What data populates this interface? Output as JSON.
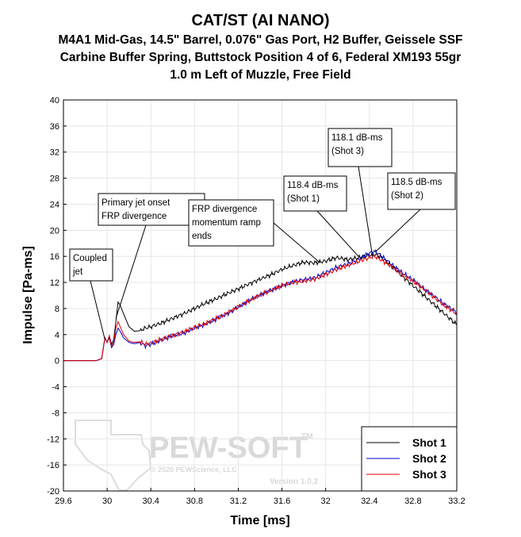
{
  "chart_data": {
    "type": "line",
    "title": "CAT/ST (AI NANO)",
    "subtitle_lines": [
      "M4A1 Mid-Gas, 14.5\" Barrel, 0.076\" Gas Port, H2 Buffer, Geissele SSF",
      "Carbine Buffer Spring, Buttstock Position 4 of 6, Federal XM193 55gr",
      "1.0 m Left of Muzzle, Free Field"
    ],
    "xlabel": "Time [ms]",
    "ylabel": "Impulse [Pa-ms]",
    "xlim": [
      29.6,
      33.2
    ],
    "ylim": [
      -20,
      40
    ],
    "x_ticks": [
      29.6,
      30,
      30.4,
      30.8,
      31.2,
      31.6,
      32,
      32.4,
      32.8,
      33.2
    ],
    "x_tick_labels": [
      "29.6",
      "30",
      "30.4",
      "30.8",
      "31.2",
      "31.6",
      "32",
      "32.4",
      "32.8",
      "33.2"
    ],
    "y_ticks": [
      -20,
      -16,
      -12,
      -8,
      -4,
      0,
      4,
      8,
      12,
      16,
      20,
      24,
      28,
      32,
      36,
      40
    ],
    "y_tick_labels": [
      "-20",
      "-16",
      "-12",
      "-8",
      "-4",
      "0",
      "4",
      "8",
      "12",
      "16",
      "20",
      "24",
      "28",
      "32",
      "36",
      "40"
    ],
    "grid": true,
    "legend_position": "bottom-right",
    "series": [
      {
        "name": "Shot 1",
        "color": "#000000",
        "x": [
          29.6,
          29.9,
          29.95,
          29.97,
          29.98,
          30.0,
          30.02,
          30.04,
          30.06,
          30.08,
          30.1,
          30.12,
          30.15,
          30.2,
          30.25,
          30.3,
          30.35,
          30.4,
          30.5,
          30.6,
          30.7,
          30.8,
          30.9,
          31.0,
          31.1,
          31.2,
          31.3,
          31.4,
          31.5,
          31.6,
          31.7,
          31.8,
          31.9,
          32.0,
          32.1,
          32.2,
          32.3,
          32.4,
          32.45,
          32.5,
          32.6,
          32.7,
          32.8,
          32.9,
          33.0,
          33.1,
          33.2
        ],
        "y": [
          0,
          0,
          0.3,
          2.5,
          3.5,
          2.8,
          3.8,
          2.5,
          3.2,
          6.0,
          9.0,
          8.5,
          7.2,
          5.2,
          4.5,
          4.6,
          5.0,
          5.2,
          5.8,
          6.5,
          7.2,
          8.0,
          8.8,
          9.5,
          10.3,
          11.0,
          11.8,
          12.5,
          13.2,
          14.0,
          14.6,
          15.1,
          15.0,
          15.3,
          15.8,
          15.5,
          15.8,
          16.2,
          16.3,
          16.0,
          14.6,
          13.0,
          11.5,
          10.0,
          8.5,
          7.0,
          5.5
        ]
      },
      {
        "name": "Shot 2",
        "color": "#0000cc",
        "x": [
          29.6,
          29.9,
          29.95,
          29.97,
          29.98,
          30.0,
          30.02,
          30.04,
          30.06,
          30.08,
          30.1,
          30.12,
          30.15,
          30.2,
          30.25,
          30.3,
          30.35,
          30.4,
          30.5,
          30.6,
          30.7,
          30.8,
          30.9,
          31.0,
          31.1,
          31.2,
          31.3,
          31.4,
          31.5,
          31.6,
          31.7,
          31.8,
          31.9,
          32.0,
          32.1,
          32.2,
          32.3,
          32.4,
          32.45,
          32.5,
          32.6,
          32.7,
          32.8,
          32.9,
          33.0,
          33.1,
          33.2
        ],
        "y": [
          0,
          0,
          0.3,
          2.5,
          3.5,
          2.8,
          3.5,
          2.0,
          2.5,
          4.0,
          5.0,
          4.5,
          3.5,
          2.8,
          2.6,
          2.8,
          2.3,
          2.5,
          3.2,
          3.8,
          4.2,
          5.0,
          5.6,
          6.4,
          7.2,
          8.2,
          9.2,
          10.1,
          10.8,
          11.5,
          12.1,
          12.4,
          12.7,
          13.5,
          14.3,
          14.8,
          15.5,
          16.5,
          16.8,
          16.2,
          14.8,
          13.5,
          12.4,
          11.0,
          9.8,
          8.5,
          7.4
        ]
      },
      {
        "name": "Shot 3",
        "color": "#dd0000",
        "x": [
          29.6,
          29.9,
          29.95,
          29.97,
          29.98,
          30.0,
          30.02,
          30.04,
          30.06,
          30.08,
          30.1,
          30.12,
          30.15,
          30.2,
          30.25,
          30.3,
          30.35,
          30.4,
          30.5,
          30.6,
          30.7,
          30.8,
          30.9,
          31.0,
          31.1,
          31.2,
          31.3,
          31.4,
          31.5,
          31.6,
          31.7,
          31.8,
          31.9,
          32.0,
          32.1,
          32.2,
          32.3,
          32.4,
          32.45,
          32.5,
          32.6,
          32.7,
          32.8,
          32.9,
          33.0,
          33.1,
          33.2
        ],
        "y": [
          0,
          0,
          0.3,
          2.5,
          3.5,
          2.8,
          3.8,
          2.2,
          2.8,
          5.0,
          6.0,
          5.2,
          4.0,
          3.0,
          2.8,
          2.9,
          2.5,
          2.7,
          3.3,
          3.9,
          4.4,
          5.1,
          5.7,
          6.5,
          7.3,
          8.3,
          9.2,
          10.1,
          10.8,
          11.5,
          12.0,
          12.2,
          12.5,
          13.2,
          14.0,
          14.6,
          15.2,
          15.8,
          16.0,
          15.5,
          14.5,
          13.3,
          12.2,
          11.0,
          9.6,
          8.3,
          7.2
        ]
      }
    ],
    "annotations": [
      {
        "id": "coupled",
        "lines": [
          "Coupled",
          "jet"
        ],
        "point": [
          29.98,
          3.2
        ]
      },
      {
        "id": "primary",
        "lines": [
          "Primary jet onset",
          "FRP divergence"
        ],
        "point": [
          30.08,
          6.5
        ]
      },
      {
        "id": "frp",
        "lines": [
          "FRP divergence",
          "momentum ramp",
          "ends"
        ],
        "point": [
          31.95,
          15.0
        ]
      },
      {
        "id": "s1",
        "lines": [
          "118.4 dB-ms",
          "(Shot 1)"
        ],
        "point": [
          32.3,
          16.0
        ]
      },
      {
        "id": "s3",
        "lines": [
          "118.1 dB-ms",
          "(Shot 3)"
        ],
        "point": [
          32.43,
          15.9
        ]
      },
      {
        "id": "s2",
        "lines": [
          "118.5 dB-ms",
          "(Shot 2)"
        ],
        "point": [
          32.45,
          16.6
        ]
      }
    ],
    "watermark": {
      "brand": "PEW-SOFT",
      "tm": "TM",
      "copyright": "© 2020 PEWScience, LLC",
      "version": "Version 1.0.2"
    }
  }
}
